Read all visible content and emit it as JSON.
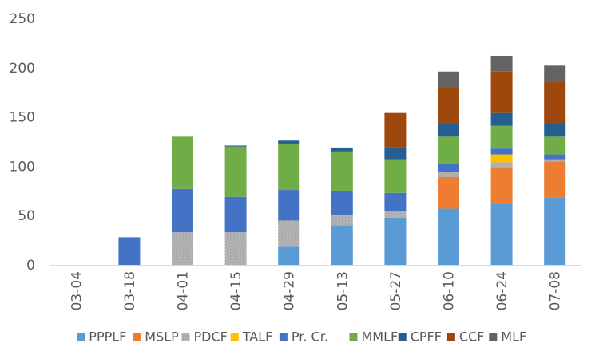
{
  "chart_data": {
    "type": "bar",
    "stacked": true,
    "title": "",
    "xlabel": "",
    "ylabel": "",
    "ylim": [
      0,
      250
    ],
    "yticks": [
      0,
      50,
      100,
      150,
      200,
      250
    ],
    "grid": false,
    "legend_position": "bottom",
    "categories": [
      "03-04",
      "03-18",
      "04-01",
      "04-15",
      "04-29",
      "05-13",
      "05-27",
      "06-10",
      "06-24",
      "07-08"
    ],
    "series": [
      {
        "name": "PPPLF",
        "color": "#5b9bd5",
        "pattern": "solid",
        "values": [
          0,
          0,
          0,
          0,
          19,
          40,
          48,
          57,
          62,
          68
        ]
      },
      {
        "name": "MSLP",
        "color": "#ed7d31",
        "pattern": "solid",
        "values": [
          0,
          0,
          0,
          0,
          0,
          0,
          0,
          32,
          37,
          37
        ]
      },
      {
        "name": "PDCF",
        "color": "#a5a5a5",
        "pattern": "dotted",
        "values": [
          0,
          0,
          33,
          33,
          26,
          11,
          7,
          5,
          5,
          2
        ]
      },
      {
        "name": "TALF",
        "color": "#ffc000",
        "pattern": "solid",
        "values": [
          0,
          0,
          0,
          0,
          0,
          0,
          0,
          0,
          8,
          0
        ]
      },
      {
        "name": "Pr. Cr.",
        "color": "#4472c4",
        "pattern": "solid",
        "values": [
          0,
          28,
          44,
          36,
          31,
          24,
          18,
          9,
          6,
          5
        ]
      },
      {
        "name": "MMLF",
        "color": "#70ad47",
        "pattern": "solid",
        "values": [
          0,
          0,
          53,
          51,
          47,
          40,
          34,
          27,
          23,
          18
        ]
      },
      {
        "name": "CPFF",
        "color": "#255e91",
        "pattern": "solid",
        "values": [
          0,
          0,
          0,
          1,
          3,
          4,
          12,
          13,
          13,
          13
        ]
      },
      {
        "name": "CCF",
        "color": "#9e480e",
        "pattern": "solid",
        "values": [
          0,
          0,
          0,
          0,
          0,
          0,
          35,
          37,
          42,
          43
        ]
      },
      {
        "name": "MLF",
        "color": "#636363",
        "pattern": "solid",
        "values": [
          0,
          0,
          0,
          0,
          0,
          0,
          0,
          16,
          16,
          16
        ]
      }
    ]
  }
}
